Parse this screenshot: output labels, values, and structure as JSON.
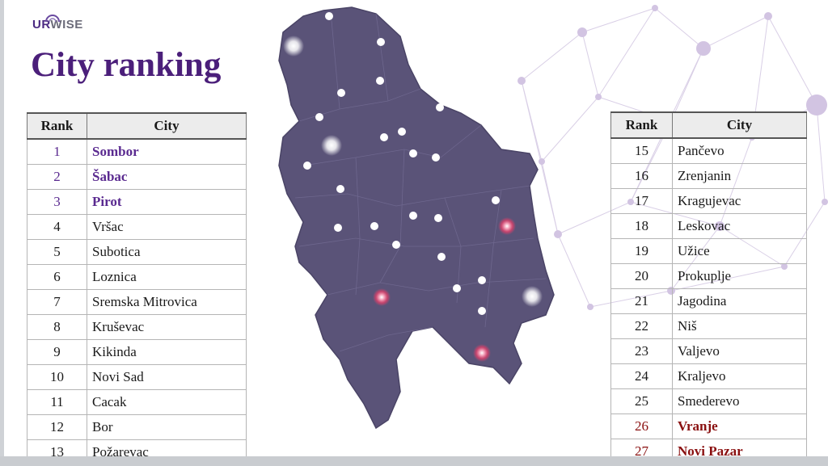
{
  "logo": {
    "part1": "UR",
    "part2": "WISE"
  },
  "title": "City ranking",
  "table_headers": {
    "rank": "Rank",
    "city": "City"
  },
  "left_table": [
    {
      "rank": "1",
      "city": "Sombor",
      "tier": "top"
    },
    {
      "rank": "2",
      "city": "Šabac",
      "tier": "top"
    },
    {
      "rank": "3",
      "city": "Pirot",
      "tier": "top"
    },
    {
      "rank": "4",
      "city": "Vršac",
      "tier": "normal"
    },
    {
      "rank": "5",
      "city": "Subotica",
      "tier": "normal"
    },
    {
      "rank": "6",
      "city": "Loznica",
      "tier": "normal"
    },
    {
      "rank": "7",
      "city": "Sremska Mitrovica",
      "tier": "normal"
    },
    {
      "rank": "8",
      "city": "Kruševac",
      "tier": "normal"
    },
    {
      "rank": "9",
      "city": "Kikinda",
      "tier": "normal"
    },
    {
      "rank": "10",
      "city": "Novi Sad",
      "tier": "normal"
    },
    {
      "rank": "11",
      "city": "Cacak",
      "tier": "normal"
    },
    {
      "rank": "12",
      "city": "Bor",
      "tier": "normal"
    },
    {
      "rank": "13",
      "city": "Požarevac",
      "tier": "normal"
    }
  ],
  "right_table": [
    {
      "rank": "15",
      "city": "Pančevo",
      "tier": "normal"
    },
    {
      "rank": "16",
      "city": "Zrenjanin",
      "tier": "normal"
    },
    {
      "rank": "17",
      "city": "Kragujevac",
      "tier": "normal"
    },
    {
      "rank": "18",
      "city": "Leskovac",
      "tier": "normal"
    },
    {
      "rank": "19",
      "city": "Užice",
      "tier": "normal"
    },
    {
      "rank": "20",
      "city": "Prokuplje",
      "tier": "normal"
    },
    {
      "rank": "21",
      "city": "Jagodina",
      "tier": "normal"
    },
    {
      "rank": "22",
      "city": "Niš",
      "tier": "normal"
    },
    {
      "rank": "23",
      "city": "Valjevo",
      "tier": "normal"
    },
    {
      "rank": "24",
      "city": "Kraljevo",
      "tier": "normal"
    },
    {
      "rank": "25",
      "city": "Smederevo",
      "tier": "normal"
    },
    {
      "rank": "26",
      "city": "Vranje",
      "tier": "bottom"
    },
    {
      "rank": "27",
      "city": "Novi Pazar",
      "tier": "bottom"
    }
  ],
  "colors": {
    "title": "#4b1f7a",
    "top_city": "#5a2a90",
    "bottom_city": "#8a1010",
    "map_fill": "#5a5378",
    "glow_white": "#ffffff",
    "glow_red": "#e0406a"
  },
  "icons": {
    "map": "serbia-map",
    "logo_arc": "logo-arc-icon"
  }
}
